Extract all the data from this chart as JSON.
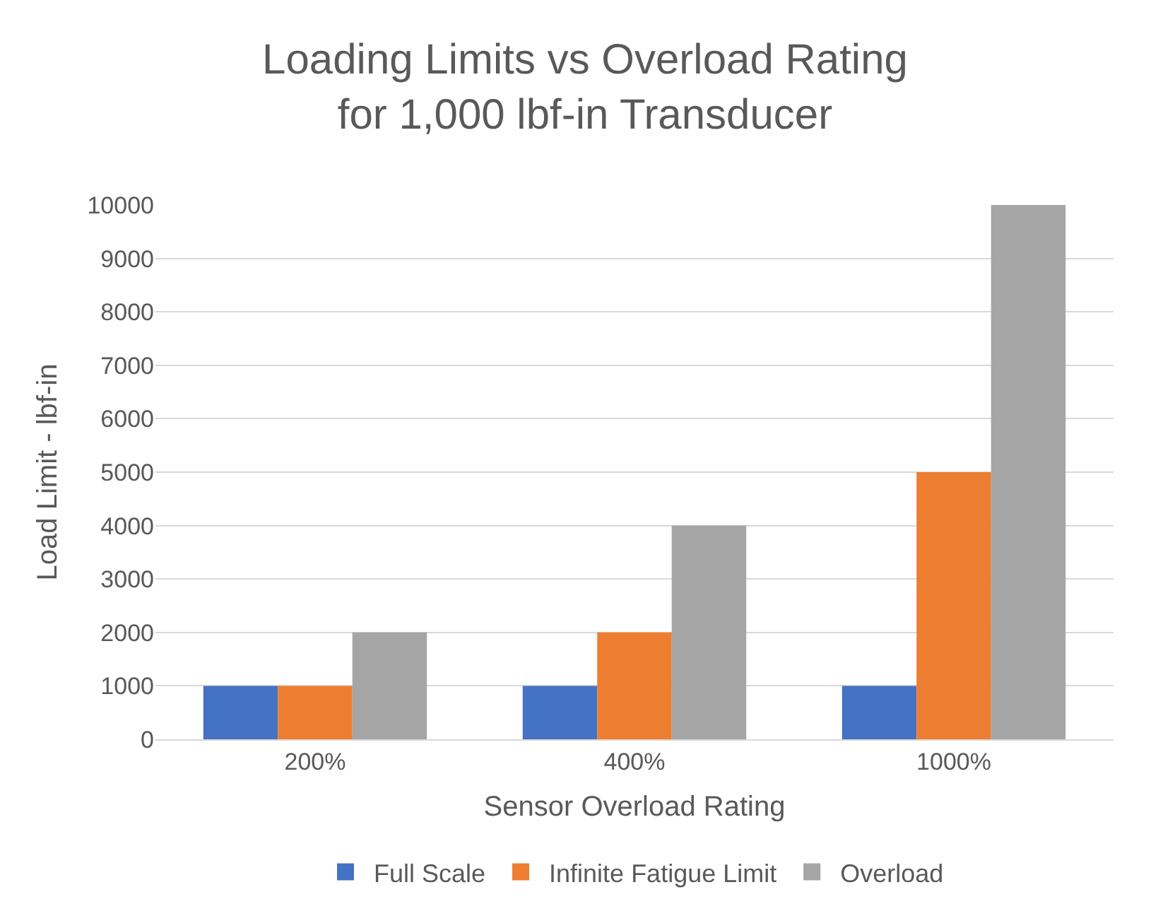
{
  "chart_data": {
    "type": "bar",
    "title": "Loading Limits vs Overload Rating\nfor 1,000 lbf-in Transducer",
    "xlabel": "Sensor Overload Rating",
    "ylabel": "Load Limit - lbf-in",
    "categories": [
      "200%",
      "400%",
      "1000%"
    ],
    "series": [
      {
        "name": "Full Scale",
        "color": "#4472c4",
        "values": [
          1000,
          1000,
          1000
        ]
      },
      {
        "name": "Infinite Fatigue Limit",
        "color": "#ed7d31",
        "values": [
          1000,
          2000,
          5000
        ]
      },
      {
        "name": "Overload",
        "color": "#a5a5a5",
        "values": [
          2000,
          4000,
          10000
        ]
      }
    ],
    "ylim": [
      0,
      10000
    ],
    "yticks": [
      0,
      1000,
      2000,
      3000,
      4000,
      5000,
      6000,
      7000,
      8000,
      9000,
      10000
    ],
    "grid": "y",
    "legend": "bottom"
  }
}
